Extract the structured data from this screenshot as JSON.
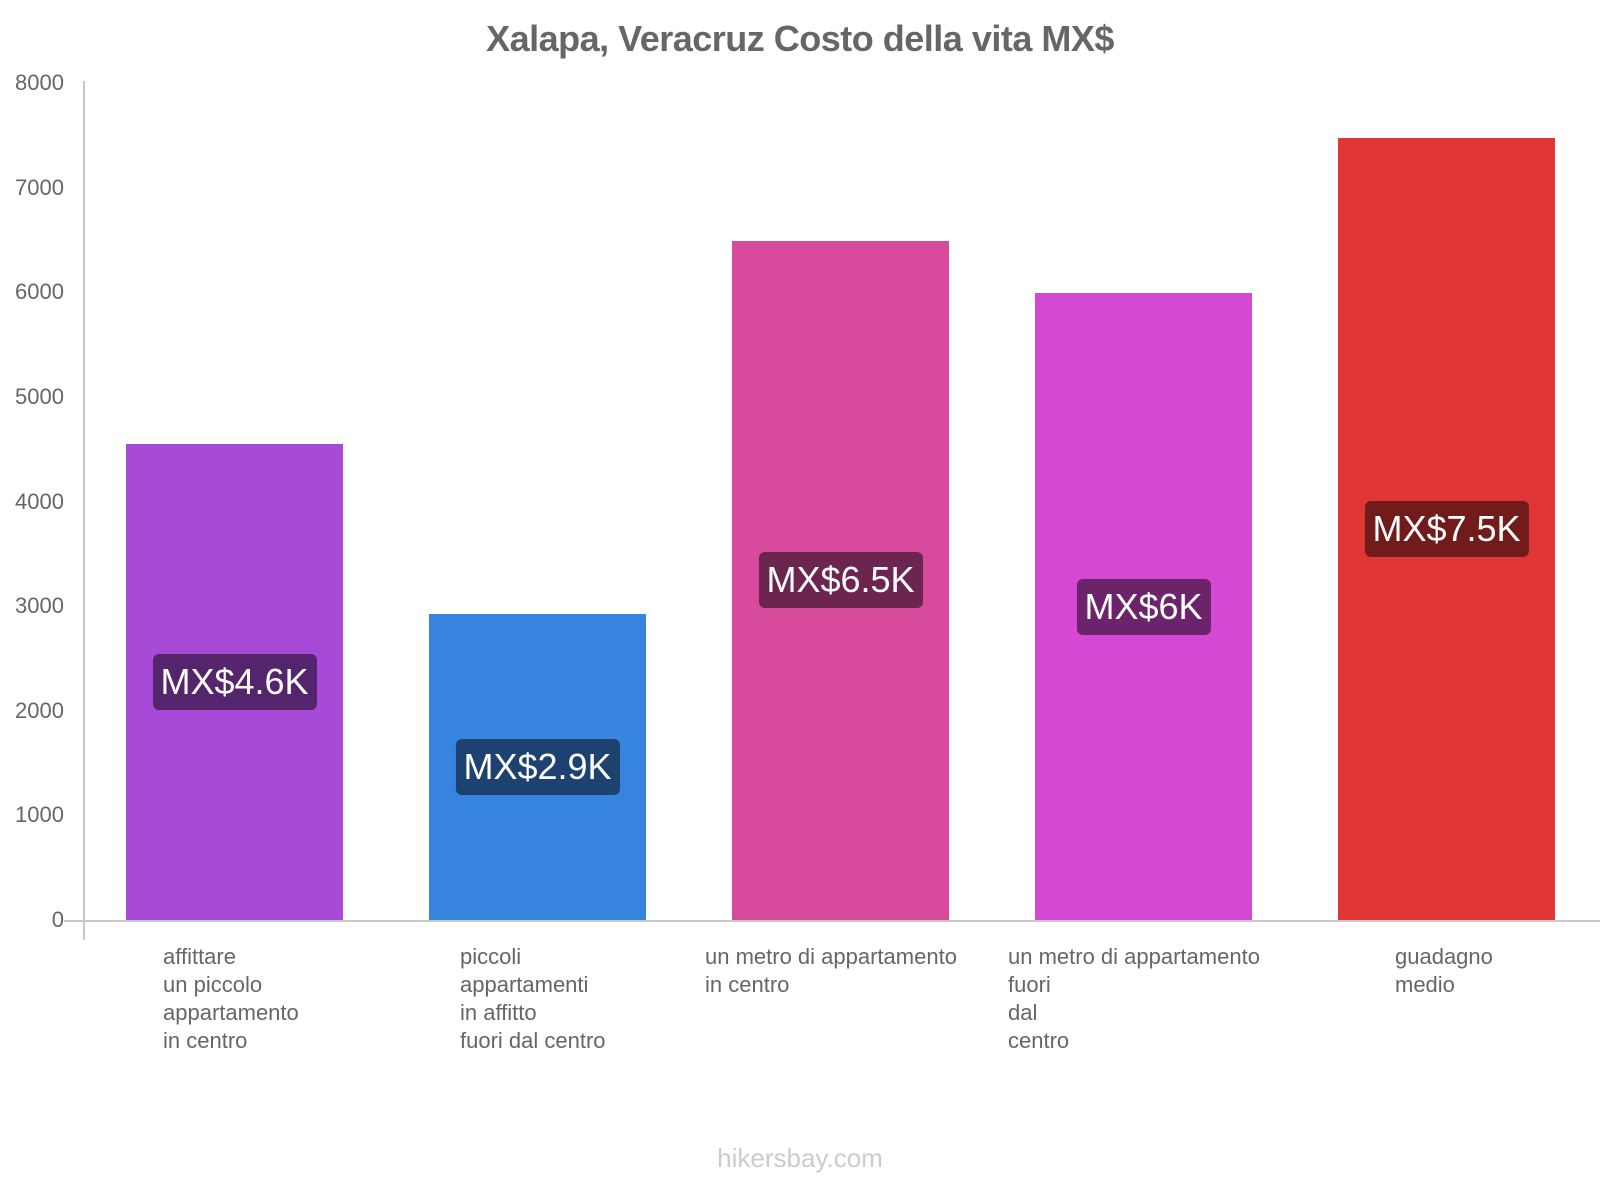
{
  "title": "Xalapa, Veracruz Costo della vita MX$",
  "watermark": "hikersbay.com",
  "y_axis": {
    "ticks": [
      "0",
      "1000",
      "2000",
      "3000",
      "4000",
      "5000",
      "6000",
      "7000",
      "8000"
    ]
  },
  "bars": [
    {
      "category": "affittare\nun piccolo\nappartamento\nin centro",
      "value": 4550,
      "label": "MX$4.6K",
      "color": "#a84ad8",
      "label_bg": "#54246c"
    },
    {
      "category": "piccoli\nappartamenti\nin affitto\nfuori dal centro",
      "value": 2925,
      "label": "MX$2.9K",
      "color": "#3684de",
      "label_bg": "#1d426f"
    },
    {
      "category": "un metro di appartamento\nin centro",
      "value": 6490,
      "label": "MX$6.5K",
      "color": "#d84a9c",
      "label_bg": "#6c254e"
    },
    {
      "category": "un metro di appartamento\nfuori\ndal\ncentro",
      "value": 5990,
      "label": "MX$6K",
      "color": "#d548d4",
      "label_bg": "#6b246a"
    },
    {
      "category": "guadagno\nmedio",
      "value": 7475,
      "label": "MX$7.5K",
      "color": "#e13636",
      "label_bg": "#711b1b"
    }
  ],
  "chart_data": {
    "type": "bar",
    "title": "Xalapa, Veracruz Costo della vita MX$",
    "categories": [
      "affittare un piccolo appartamento in centro",
      "piccoli appartamenti in affitto fuori dal centro",
      "un metro di appartamento in centro",
      "un metro di appartamento fuori dal centro",
      "guadagno medio"
    ],
    "values": [
      4550,
      2925,
      6490,
      5990,
      7475
    ],
    "data_labels": [
      "MX$4.6K",
      "MX$2.9K",
      "MX$6.5K",
      "MX$6K",
      "MX$7.5K"
    ],
    "colors": [
      "#a84ad8",
      "#3684de",
      "#d84a9c",
      "#d548d4",
      "#e13636"
    ],
    "xlabel": "",
    "ylabel": "",
    "ylim": [
      0,
      8000
    ],
    "yticks": [
      0,
      1000,
      2000,
      3000,
      4000,
      5000,
      6000,
      7000,
      8000
    ],
    "grid": false,
    "legend": null
  }
}
